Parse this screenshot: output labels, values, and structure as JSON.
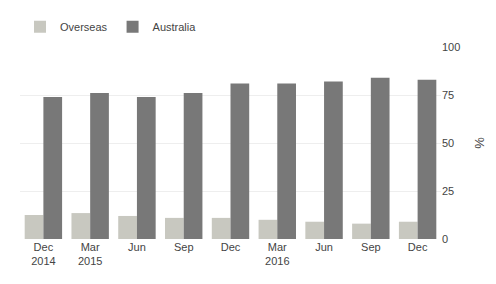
{
  "chart_data": {
    "type": "bar",
    "categories": [
      "Dec\n2014",
      "Mar\n2015",
      "Jun",
      "Sep",
      "Dec",
      "Mar\n2016",
      "Jun",
      "Sep",
      "Dec"
    ],
    "series": [
      {
        "name": "Overseas",
        "color": "#c8c8c0",
        "values": [
          12.5,
          13.5,
          12.0,
          11.0,
          11.0,
          10.0,
          9.0,
          8.0,
          9.0
        ]
      },
      {
        "name": "Australia",
        "color": "#787878",
        "values": [
          74,
          76,
          74,
          76,
          81,
          81,
          82,
          84,
          83
        ]
      }
    ],
    "ylabel": "%",
    "ylim": [
      0,
      100
    ],
    "yticks": [
      0,
      25,
      50,
      75,
      100
    ],
    "grid": true,
    "legend": "upper left"
  }
}
